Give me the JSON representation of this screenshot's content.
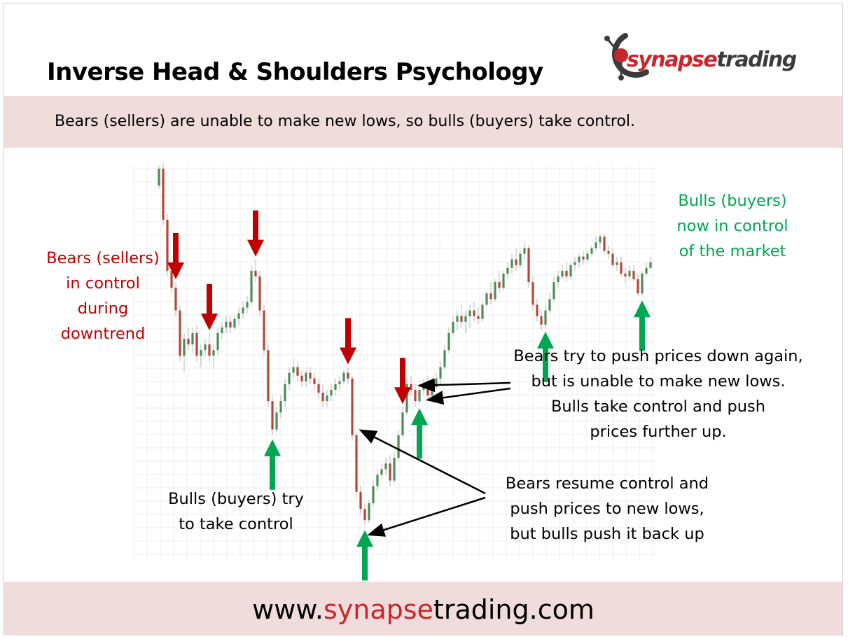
{
  "title": "Inverse Head & Shoulders Psychology",
  "subtitle": "Bears (sellers) are unable to make new lows, so bulls (buyers) take control.",
  "logo": {
    "part1": "synapse",
    "part2": "trading"
  },
  "footer": {
    "prefix": "www.",
    "accent": "synapse",
    "suffix": "trading.com"
  },
  "colors": {
    "bull_candle": "#4f8b5a",
    "bear_candle": "#b5473a",
    "red_arrow": "#c00000",
    "green_arrow": "#00a651",
    "band": "#f1dcdc",
    "accent": "#c9252c"
  },
  "annotations": {
    "bears_control": [
      "Bears (sellers)",
      "in control",
      "during",
      "downtrend"
    ],
    "bulls_try": [
      "Bulls (buyers) try",
      "to take control"
    ],
    "bears_resume": [
      "Bears resume control and",
      "push prices to new lows,",
      "but bulls push it back up"
    ],
    "bears_try_again": [
      "Bears try to push prices down again,",
      "but is unable to make new lows.",
      "Bulls take control and push",
      "prices further up."
    ],
    "bulls_now": [
      "Bulls (buyers)",
      "now in control",
      "of the market"
    ]
  },
  "chart_data": {
    "type": "candlestick",
    "grid": true,
    "pattern": "inverse head and shoulders",
    "red_arrow_candles": [
      4,
      12,
      23,
      45,
      58
    ],
    "green_arrow_candles": [
      27,
      49,
      62,
      92,
      115
    ],
    "pointer_candles": [
      49,
      47,
      61,
      63
    ],
    "candles": [
      [
        950,
        985,
        945,
        980
      ],
      [
        980,
        990,
        880,
        890
      ],
      [
        890,
        900,
        790,
        800
      ],
      [
        800,
        810,
        760,
        770
      ],
      [
        770,
        780,
        720,
        730
      ],
      [
        730,
        740,
        640,
        650
      ],
      [
        650,
        690,
        620,
        680
      ],
      [
        680,
        700,
        660,
        670
      ],
      [
        670,
        700,
        655,
        690
      ],
      [
        690,
        705,
        640,
        650
      ],
      [
        650,
        670,
        630,
        660
      ],
      [
        660,
        680,
        650,
        670
      ],
      [
        670,
        690,
        640,
        650
      ],
      [
        650,
        670,
        630,
        660
      ],
      [
        660,
        700,
        650,
        690
      ],
      [
        690,
        710,
        680,
        700
      ],
      [
        700,
        720,
        690,
        710
      ],
      [
        710,
        720,
        690,
        700
      ],
      [
        700,
        720,
        695,
        715
      ],
      [
        715,
        735,
        705,
        725
      ],
      [
        725,
        745,
        715,
        735
      ],
      [
        735,
        755,
        725,
        745
      ],
      [
        745,
        810,
        740,
        800
      ],
      [
        800,
        820,
        780,
        790
      ],
      [
        790,
        800,
        720,
        730
      ],
      [
        730,
        740,
        650,
        660
      ],
      [
        660,
        670,
        560,
        570
      ],
      [
        570,
        580,
        510,
        520
      ],
      [
        520,
        560,
        515,
        550
      ],
      [
        550,
        580,
        540,
        570
      ],
      [
        570,
        610,
        560,
        600
      ],
      [
        600,
        630,
        590,
        620
      ],
      [
        620,
        645,
        610,
        630
      ],
      [
        630,
        640,
        605,
        615
      ],
      [
        615,
        625,
        595,
        605
      ],
      [
        605,
        625,
        595,
        620
      ],
      [
        620,
        630,
        600,
        610
      ],
      [
        610,
        620,
        590,
        600
      ],
      [
        600,
        610,
        575,
        585
      ],
      [
        585,
        600,
        560,
        570
      ],
      [
        570,
        590,
        560,
        580
      ],
      [
        580,
        600,
        570,
        590
      ],
      [
        590,
        610,
        580,
        600
      ],
      [
        600,
        615,
        590,
        605
      ],
      [
        605,
        625,
        600,
        620
      ],
      [
        620,
        630,
        600,
        610
      ],
      [
        610,
        615,
        500,
        510
      ],
      [
        510,
        515,
        400,
        410
      ],
      [
        410,
        420,
        370,
        380
      ],
      [
        380,
        390,
        350,
        360
      ],
      [
        360,
        395,
        355,
        390
      ],
      [
        390,
        430,
        385,
        420
      ],
      [
        420,
        450,
        410,
        440
      ],
      [
        440,
        460,
        430,
        450
      ],
      [
        450,
        470,
        440,
        460
      ],
      [
        460,
        475,
        420,
        430
      ],
      [
        430,
        480,
        425,
        470
      ],
      [
        470,
        520,
        465,
        510
      ],
      [
        510,
        560,
        505,
        550
      ],
      [
        550,
        610,
        545,
        600
      ],
      [
        600,
        615,
        580,
        590
      ],
      [
        590,
        600,
        560,
        570
      ],
      [
        570,
        600,
        565,
        590
      ],
      [
        590,
        610,
        580,
        600
      ],
      [
        600,
        615,
        570,
        580
      ],
      [
        580,
        605,
        575,
        595
      ],
      [
        595,
        620,
        590,
        610
      ],
      [
        610,
        640,
        600,
        630
      ],
      [
        630,
        670,
        625,
        660
      ],
      [
        660,
        700,
        655,
        690
      ],
      [
        690,
        720,
        685,
        710
      ],
      [
        710,
        730,
        695,
        720
      ],
      [
        720,
        740,
        700,
        710
      ],
      [
        710,
        730,
        690,
        720
      ],
      [
        720,
        740,
        700,
        730
      ],
      [
        730,
        745,
        710,
        720
      ],
      [
        720,
        735,
        705,
        715
      ],
      [
        715,
        745,
        710,
        740
      ],
      [
        740,
        765,
        735,
        760
      ],
      [
        760,
        780,
        740,
        750
      ],
      [
        750,
        785,
        745,
        780
      ],
      [
        780,
        800,
        760,
        770
      ],
      [
        770,
        800,
        765,
        795
      ],
      [
        795,
        815,
        785,
        805
      ],
      [
        805,
        830,
        795,
        820
      ],
      [
        820,
        840,
        800,
        810
      ],
      [
        810,
        835,
        805,
        830
      ],
      [
        830,
        850,
        820,
        840
      ],
      [
        840,
        845,
        770,
        780
      ],
      [
        780,
        790,
        730,
        740
      ],
      [
        740,
        750,
        710,
        720
      ],
      [
        720,
        730,
        695,
        705
      ],
      [
        705,
        740,
        700,
        730
      ],
      [
        730,
        760,
        725,
        750
      ],
      [
        750,
        790,
        745,
        780
      ],
      [
        780,
        800,
        770,
        790
      ],
      [
        790,
        810,
        785,
        800
      ],
      [
        800,
        815,
        780,
        790
      ],
      [
        790,
        815,
        785,
        810
      ],
      [
        810,
        825,
        800,
        815
      ],
      [
        815,
        830,
        805,
        825
      ],
      [
        825,
        835,
        810,
        820
      ],
      [
        820,
        835,
        815,
        830
      ],
      [
        830,
        845,
        825,
        840
      ],
      [
        840,
        860,
        835,
        850
      ],
      [
        850,
        865,
        840,
        860
      ],
      [
        860,
        865,
        830,
        835
      ],
      [
        835,
        845,
        820,
        830
      ],
      [
        830,
        840,
        805,
        810
      ],
      [
        810,
        825,
        800,
        815
      ],
      [
        815,
        825,
        790,
        795
      ],
      [
        795,
        805,
        780,
        790
      ],
      [
        790,
        810,
        785,
        800
      ],
      [
        800,
        810,
        780,
        785
      ],
      [
        785,
        795,
        755,
        760
      ],
      [
        760,
        800,
        755,
        795
      ],
      [
        795,
        815,
        790,
        805
      ],
      [
        805,
        825,
        800,
        815
      ]
    ]
  }
}
